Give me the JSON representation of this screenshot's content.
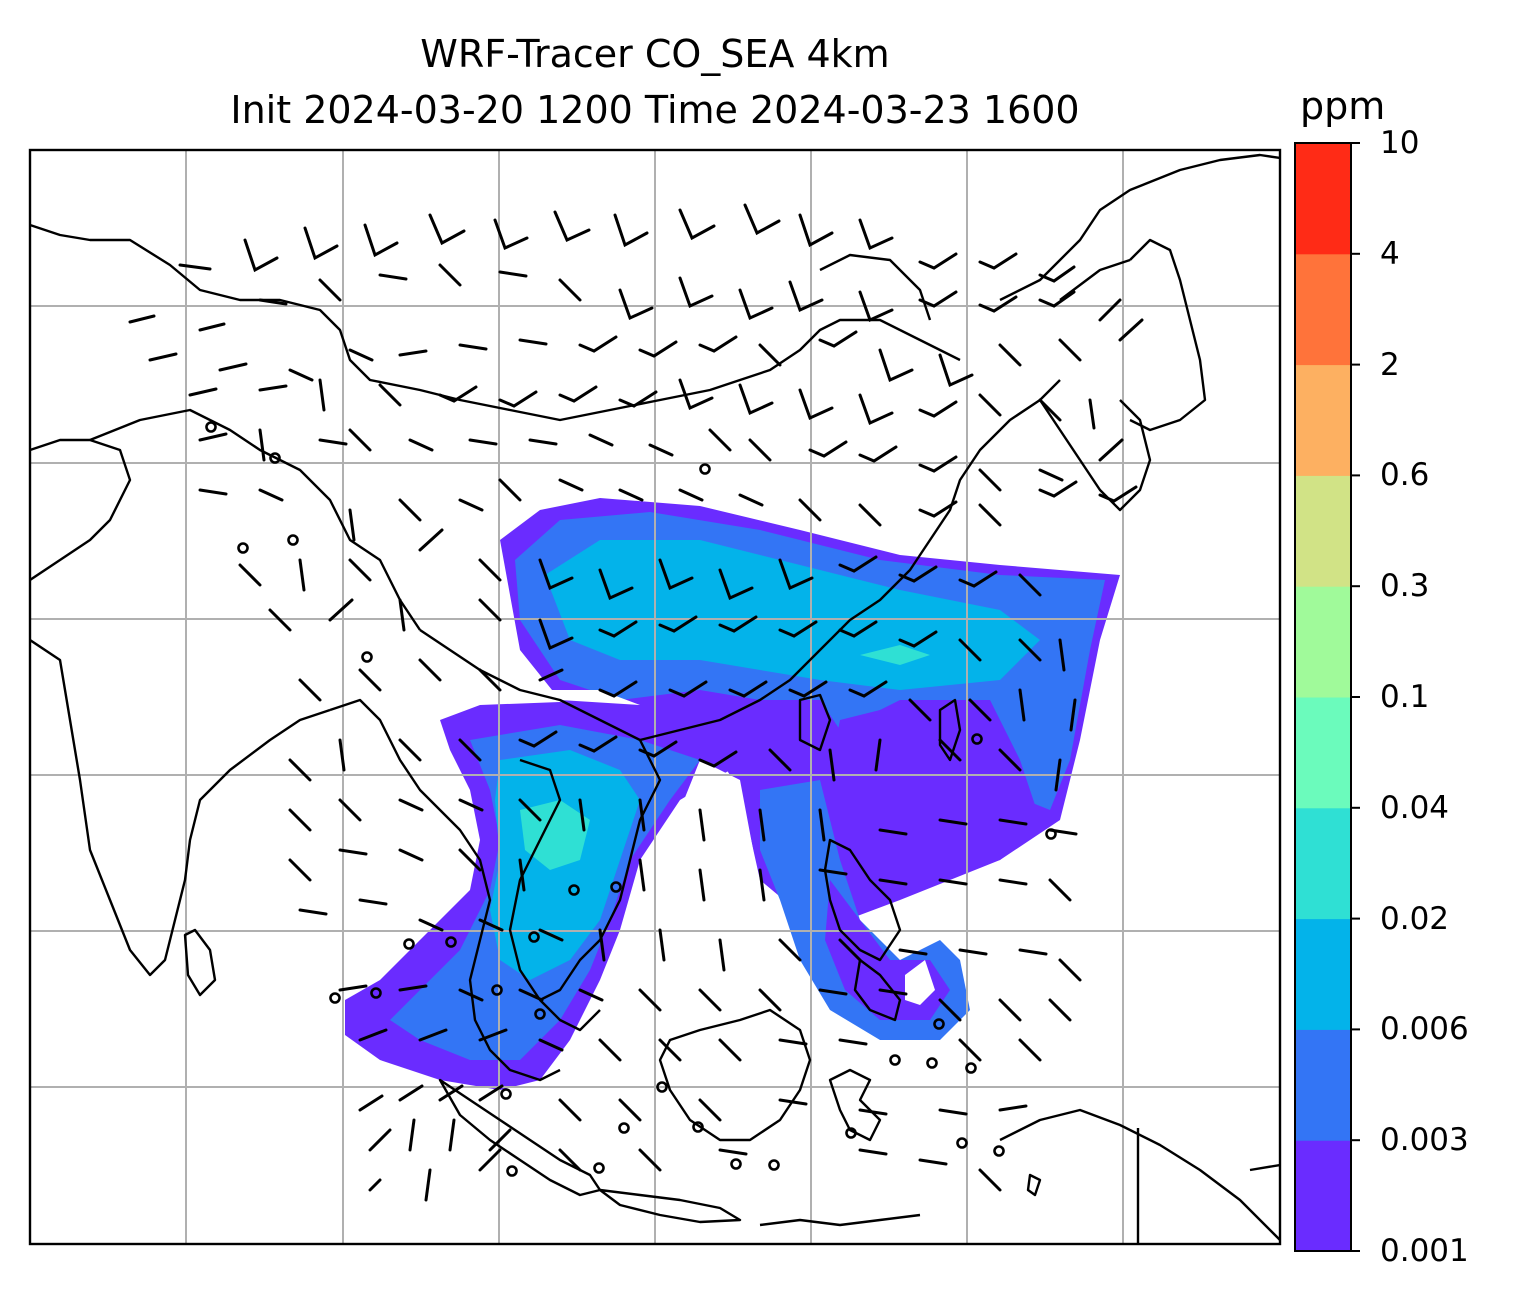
{
  "title": {
    "line1": "WRF-Tracer CO_SEA 4km",
    "line2": "Init 2024-03-20 1200 Time 2024-03-23 1600"
  },
  "colorbar": {
    "unit": "ppm",
    "levels": [
      "0.001",
      "0.003",
      "0.006",
      "0.02",
      "0.04",
      "0.1",
      "0.3",
      "0.6",
      "2",
      "4",
      "10"
    ],
    "colors": [
      "#6a2cff",
      "#3375f5",
      "#03b3ea",
      "#2fe0d4",
      "#6bfbbc",
      "#a0fa9a",
      "#d1e386",
      "#fdb061",
      "#ff733a",
      "#ff2b16"
    ]
  },
  "map": {
    "grid": "on",
    "gridlines_x": 7,
    "gridlines_y": 6,
    "features": [
      "coastlines",
      "country-borders",
      "wind-barbs",
      "CO-tracer-plume"
    ]
  }
}
